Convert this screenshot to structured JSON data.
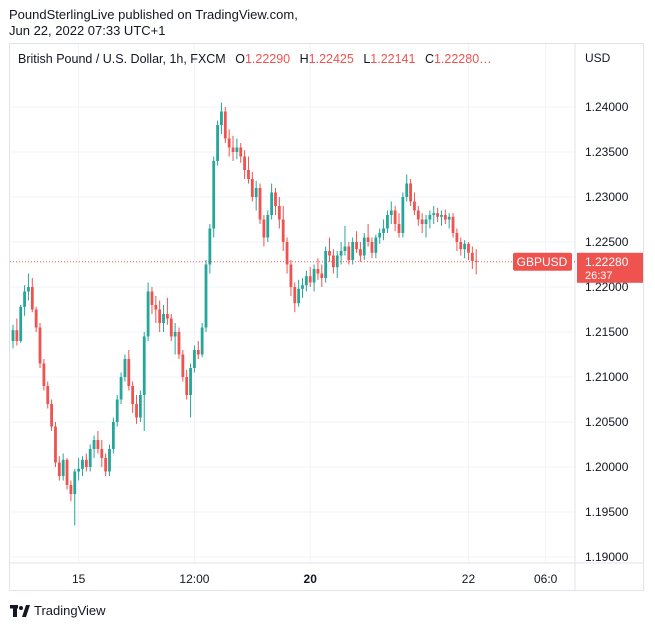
{
  "header": {
    "publisher": "PoundSterlingLive published on TradingView.com,",
    "published_at": "Jun 22, 2022 07:33 UTC+1"
  },
  "legend": {
    "symbol": "British Pound / U.S. Dollar, 1h, FXCM",
    "o_label": "O",
    "o_value": "1.22290",
    "h_label": "H",
    "h_value": "1.22425",
    "l_label": "L",
    "l_value": "1.22141",
    "c_label": "C",
    "c_value": "1.22280…"
  },
  "footer": {
    "brand": "TradingView"
  },
  "colors": {
    "up": "#26a69a",
    "down": "#ef5350",
    "grid": "#f0f3fa",
    "label_bg": "#ef5350"
  },
  "chart_data": {
    "type": "candlestick",
    "symbol": "GBPUSD",
    "currency": "USD",
    "ylim": [
      1.1888,
      1.2451
    ],
    "y_ticks": [
      "1.24000",
      "1.23500",
      "1.23000",
      "1.22500",
      "1.22000",
      "1.21500",
      "1.21000",
      "1.20500",
      "1.20000",
      "1.19500",
      "1.19000"
    ],
    "x_ticks": [
      {
        "label": "15",
        "bold": false,
        "bar": 17
      },
      {
        "label": "12:00",
        "bold": false,
        "bar": 47
      },
      {
        "label": "20",
        "bold": true,
        "bar": 77
      },
      {
        "label": "22",
        "bold": false,
        "bar": 118
      },
      {
        "label": "06:0",
        "bold": false,
        "bar": 138
      }
    ],
    "last_price": {
      "label": "GBPUSD",
      "value": "1.22280",
      "countdown": "26:37",
      "price": 1.2228
    },
    "candles": [
      [
        1.214,
        1.2158,
        1.2132,
        1.2152
      ],
      [
        1.2152,
        1.2165,
        1.2135,
        1.214
      ],
      [
        1.214,
        1.218,
        1.2138,
        1.2178
      ],
      [
        1.2178,
        1.2202,
        1.2168,
        1.2195
      ],
      [
        1.2195,
        1.2215,
        1.2185,
        1.22
      ],
      [
        1.22,
        1.221,
        1.2172,
        1.2175
      ],
      [
        1.2175,
        1.2178,
        1.215,
        1.2155
      ],
      [
        1.2155,
        1.216,
        1.211,
        1.2115
      ],
      [
        1.2115,
        1.212,
        1.2085,
        1.209
      ],
      [
        1.209,
        1.2095,
        1.2065,
        1.207
      ],
      [
        1.207,
        1.2075,
        1.204,
        1.2045
      ],
      [
        1.2045,
        1.205,
        1.2,
        1.2005
      ],
      [
        1.2005,
        1.2012,
        1.1985,
        1.199
      ],
      [
        1.199,
        1.2015,
        1.1985,
        1.2008
      ],
      [
        1.2008,
        1.201,
        1.1975,
        1.198
      ],
      [
        1.198,
        1.1985,
        1.1962,
        1.197
      ],
      [
        1.197,
        1.1998,
        1.1935,
        1.1995
      ],
      [
        1.1995,
        1.201,
        1.1985,
        1.1998
      ],
      [
        1.1998,
        1.2012,
        1.199,
        1.2008
      ],
      [
        1.2008,
        1.2015,
        1.1995,
        1.2
      ],
      [
        1.2,
        1.2025,
        1.1995,
        1.202
      ],
      [
        1.202,
        1.2035,
        1.201,
        1.203
      ],
      [
        1.203,
        1.204,
        1.2015,
        1.202
      ],
      [
        1.202,
        1.203,
        1.2,
        1.201
      ],
      [
        1.201,
        1.2015,
        1.199,
        1.1995
      ],
      [
        1.1995,
        1.2025,
        1.199,
        1.202
      ],
      [
        1.202,
        1.2055,
        1.2015,
        1.205
      ],
      [
        1.205,
        1.208,
        1.2045,
        1.2075
      ],
      [
        1.2075,
        1.2105,
        1.207,
        1.21
      ],
      [
        1.21,
        1.2125,
        1.2095,
        1.212
      ],
      [
        1.212,
        1.213,
        1.2085,
        1.209
      ],
      [
        1.209,
        1.2095,
        1.206,
        1.207
      ],
      [
        1.207,
        1.208,
        1.2048,
        1.2055
      ],
      [
        1.2055,
        1.2085,
        1.205,
        1.208
      ],
      [
        1.208,
        1.215,
        1.204,
        1.2145
      ],
      [
        1.2145,
        1.2205,
        1.214,
        1.2195
      ],
      [
        1.2195,
        1.22,
        1.217,
        1.218
      ],
      [
        1.218,
        1.219,
        1.216,
        1.2175
      ],
      [
        1.2175,
        1.2185,
        1.215,
        1.216
      ],
      [
        1.216,
        1.218,
        1.215,
        1.217
      ],
      [
        1.217,
        1.2188,
        1.2158,
        1.2165
      ],
      [
        1.2165,
        1.217,
        1.214,
        1.2145
      ],
      [
        1.2145,
        1.216,
        1.2125,
        1.215
      ],
      [
        1.215,
        1.2155,
        1.212,
        1.2125
      ],
      [
        1.2125,
        1.213,
        1.2095,
        1.21
      ],
      [
        1.21,
        1.2108,
        1.2075,
        1.208
      ],
      [
        1.208,
        1.2115,
        1.2055,
        1.211
      ],
      [
        1.211,
        1.2135,
        1.2105,
        1.213
      ],
      [
        1.213,
        1.214,
        1.212,
        1.2125
      ],
      [
        1.2125,
        1.216,
        1.2122,
        1.2155
      ],
      [
        1.2155,
        1.223,
        1.215,
        1.2225
      ],
      [
        1.2225,
        1.227,
        1.2215,
        1.2265
      ],
      [
        1.2265,
        1.2345,
        1.2255,
        1.234
      ],
      [
        1.234,
        1.2385,
        1.2335,
        1.238
      ],
      [
        1.238,
        1.2405,
        1.237,
        1.2395
      ],
      [
        1.2395,
        1.24,
        1.236,
        1.2365
      ],
      [
        1.2365,
        1.2375,
        1.2345,
        1.2355
      ],
      [
        1.2355,
        1.2368,
        1.234,
        1.235
      ],
      [
        1.235,
        1.2365,
        1.2342,
        1.2355
      ],
      [
        1.2355,
        1.236,
        1.2338,
        1.2345
      ],
      [
        1.2345,
        1.2352,
        1.232,
        1.233
      ],
      [
        1.233,
        1.2345,
        1.2315,
        1.232
      ],
      [
        1.232,
        1.2328,
        1.2295,
        1.23
      ],
      [
        1.23,
        1.2318,
        1.2285,
        1.231
      ],
      [
        1.231,
        1.2315,
        1.227,
        1.2275
      ],
      [
        1.2275,
        1.228,
        1.2245,
        1.2255
      ],
      [
        1.2255,
        1.2285,
        1.225,
        1.228
      ],
      [
        1.228,
        1.2315,
        1.2275,
        1.2305
      ],
      [
        1.2305,
        1.231,
        1.228,
        1.229
      ],
      [
        1.229,
        1.23,
        1.2265,
        1.2275
      ],
      [
        1.2275,
        1.229,
        1.224,
        1.225
      ],
      [
        1.225,
        1.2255,
        1.2215,
        1.2225
      ],
      [
        1.2225,
        1.223,
        1.219,
        1.22
      ],
      [
        1.22,
        1.2205,
        1.2172,
        1.2182
      ],
      [
        1.2182,
        1.2208,
        1.2178,
        1.2198
      ],
      [
        1.2198,
        1.221,
        1.2188,
        1.2202
      ],
      [
        1.2202,
        1.2218,
        1.2195,
        1.2212
      ],
      [
        1.2212,
        1.2222,
        1.22,
        1.2205
      ],
      [
        1.2205,
        1.2225,
        1.2195,
        1.222
      ],
      [
        1.222,
        1.2232,
        1.2208,
        1.2215
      ],
      [
        1.2215,
        1.2225,
        1.22,
        1.221
      ],
      [
        1.221,
        1.2245,
        1.2205,
        1.224
      ],
      [
        1.224,
        1.2255,
        1.2228,
        1.2235
      ],
      [
        1.2235,
        1.2242,
        1.2215,
        1.2222
      ],
      [
        1.2222,
        1.224,
        1.221,
        1.2235
      ],
      [
        1.2235,
        1.225,
        1.2225,
        1.224
      ],
      [
        1.224,
        1.2268,
        1.2235,
        1.2245
      ],
      [
        1.2245,
        1.225,
        1.2225,
        1.223
      ],
      [
        1.223,
        1.2255,
        1.2225,
        1.225
      ],
      [
        1.225,
        1.2262,
        1.2238,
        1.2242
      ],
      [
        1.2242,
        1.225,
        1.2228,
        1.2235
      ],
      [
        1.2235,
        1.226,
        1.223,
        1.2255
      ],
      [
        1.2255,
        1.227,
        1.2245,
        1.225
      ],
      [
        1.225,
        1.2255,
        1.2232,
        1.2238
      ],
      [
        1.2238,
        1.2258,
        1.2232,
        1.2255
      ],
      [
        1.2255,
        1.2265,
        1.2248,
        1.226
      ],
      [
        1.226,
        1.2275,
        1.2252,
        1.2265
      ],
      [
        1.2265,
        1.2285,
        1.226,
        1.228
      ],
      [
        1.228,
        1.2295,
        1.227,
        1.2285
      ],
      [
        1.2285,
        1.229,
        1.2262,
        1.227
      ],
      [
        1.227,
        1.2282,
        1.2255,
        1.226
      ],
      [
        1.226,
        1.2305,
        1.2255,
        1.23
      ],
      [
        1.23,
        1.2325,
        1.2295,
        1.2315
      ],
      [
        1.2315,
        1.232,
        1.229,
        1.2295
      ],
      [
        1.2295,
        1.2305,
        1.228,
        1.2285
      ],
      [
        1.2285,
        1.229,
        1.2268,
        1.2275
      ],
      [
        1.2275,
        1.2282,
        1.226,
        1.227
      ],
      [
        1.227,
        1.228,
        1.2255,
        1.2275
      ],
      [
        1.2275,
        1.2285,
        1.2265,
        1.228
      ],
      [
        1.228,
        1.229,
        1.227,
        1.2282
      ],
      [
        1.2282,
        1.2288,
        1.2272,
        1.2278
      ],
      [
        1.2278,
        1.2285,
        1.2268,
        1.228
      ],
      [
        1.228,
        1.2286,
        1.227,
        1.2275
      ],
      [
        1.2275,
        1.2282,
        1.2265,
        1.2278
      ],
      [
        1.2278,
        1.2282,
        1.2255,
        1.226
      ],
      [
        1.226,
        1.2265,
        1.224,
        1.225
      ],
      [
        1.225,
        1.2255,
        1.2235,
        1.2242
      ],
      [
        1.2242,
        1.2252,
        1.2232,
        1.2248
      ],
      [
        1.2248,
        1.225,
        1.223,
        1.2238
      ],
      [
        1.2238,
        1.2245,
        1.222,
        1.2229
      ],
      [
        1.2229,
        1.2242,
        1.2214,
        1.2228
      ]
    ]
  }
}
